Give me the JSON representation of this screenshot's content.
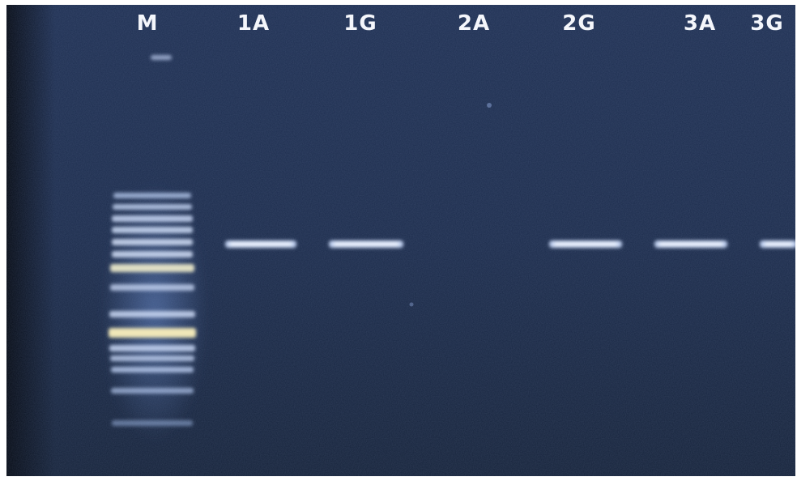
{
  "figure": {
    "type": "agarose-gel-electrophoresis-photo",
    "background_color": "#1a2b4a",
    "band_color": "#cfe0ff"
  },
  "lanes": [
    {
      "id": "M",
      "label": "M",
      "marker": true
    },
    {
      "id": "1A",
      "label": "1A",
      "band": true
    },
    {
      "id": "1G",
      "label": "1G",
      "band": true
    },
    {
      "id": "2A",
      "label": "2A",
      "band": false
    },
    {
      "id": "2G",
      "label": "2G",
      "band": true
    },
    {
      "id": "3A",
      "label": "3A",
      "band": true
    },
    {
      "id": "3G",
      "label": "3G",
      "band": true
    }
  ]
}
